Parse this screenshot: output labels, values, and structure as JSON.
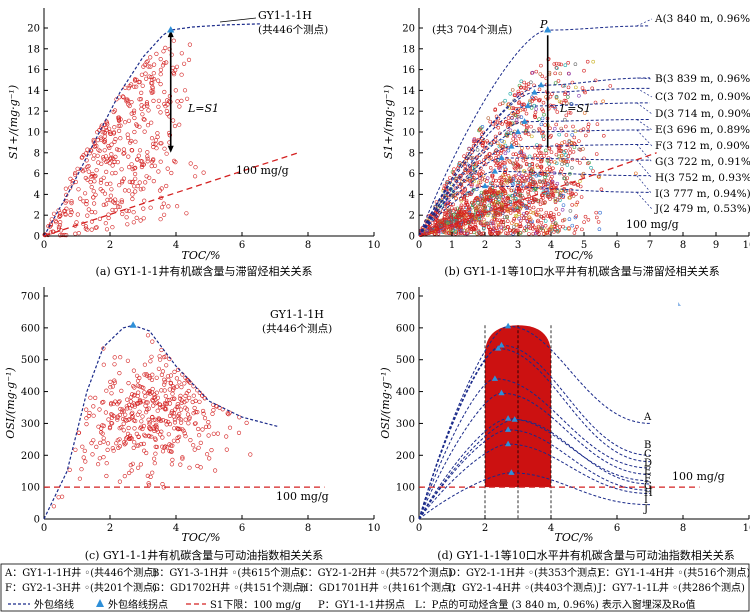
{
  "panels": {
    "a": {
      "ylabel": "S1+/(mg·g⁻¹)",
      "xlabel": "TOC/%",
      "ann_well": "GY1-1-1H",
      "ann_count": "(共446个测点)",
      "lim_label": "100 mg/g",
      "l_label": "L=S1",
      "caption": "(a) GY1-1-1井有机碳含量与滞留烃相关关系"
    },
    "b": {
      "ylabel": "S1+/(mg·g⁻¹)",
      "xlabel": "TOC/%",
      "total": "(共3 704个测点)",
      "p_label": "P",
      "l_label": "L=S1",
      "lim_label": "100 mg/g",
      "curve_labels": [
        "A(3 840 m, 0.96%)",
        "B(3 839 m, 0.96%)",
        "C(3 702 m, 0.90%)",
        "D(3 714 m, 0.90%)",
        "E(3 696 m, 0.89%)",
        "F(3 712 m, 0.90%)",
        "G(3 722 m, 0.91%)",
        "H(3 752 m, 0.93%)",
        "I(3 777 m, 0.94%)",
        "J(2 479 m, 0.53%)"
      ],
      "caption": "(b) GY1-1-1等10口水平井有机碳含量与滞留烃相关关系"
    },
    "c": {
      "ylabel": "OSI/(mg·g⁻¹)",
      "xlabel": "TOC/%",
      "ann_well": "GY1-1-1H",
      "ann_count": "(共446个测点)",
      "lim_label": "100 mg/g",
      "caption": "(c) GY1-1-1井有机碳含量与可动油指数相关关系"
    },
    "d": {
      "ylabel": "OSI/(mg·g⁻¹)",
      "xlabel": "TOC/%",
      "lim_label": "100 mg/g",
      "curve_letters": [
        "A",
        "B",
        "C",
        "D",
        "E",
        "F",
        "G",
        "H",
        "I",
        "J"
      ],
      "caption": "(d) GY1-1-1等10口水平井有机碳含量与可动油指数相关关系"
    }
  },
  "legend": {
    "rows": [
      [
        "A：GY1-1-1H井 ◦(共446个测点)",
        "B：GY1-3-1H井 ◦(共615个测点)",
        "C：GY2-1-2H井 ◦(共572个测点)",
        "D：GY2-1-1H井 ◦(共353个测点)",
        "E：GY1-1-4H井 ◦(共516个测点)"
      ],
      [
        "F：GY2-1-3H井 ◦(共201个测点)",
        "G：GD1702H井 ◦(共151个测点)",
        "H：GD1701H井 ◦(共161个测点)",
        "I：GY2-1-4H井 ◦(共403个测点)",
        "J：GY7-1-1L井 ◦(共286个测点)"
      ]
    ],
    "row3": {
      "envelope": "外包络线",
      "inflection": "外包络线拐点",
      "limit": "S1下限：100 mg/g",
      "note": "P：GY1-1-1井拐点　L：P点的可动烃含量 (3 840 m, 0.96%) 表示入窗埋深及Ro值"
    }
  },
  "colors": {
    "scatter": "#d42020",
    "envelope": "#1a2a8a",
    "limit": "#d42020",
    "marker": "#2e8fd8",
    "fill": "#cc1111"
  },
  "chart_data": [
    {
      "id": "a",
      "type": "scatter",
      "xlabel": "TOC/%",
      "ylabel": "S1+/(mg·g⁻¹)",
      "xlim": [
        0,
        10
      ],
      "ylim": [
        0,
        20
      ],
      "xticks": [
        0,
        2,
        4,
        6,
        8,
        10
      ],
      "yticks": [
        0,
        2,
        4,
        6,
        8,
        10,
        12,
        14,
        16,
        18,
        20
      ],
      "point_count": 446,
      "envelope": [
        [
          0,
          0
        ],
        [
          0.8,
          4.5
        ],
        [
          1.6,
          9.5
        ],
        [
          2.3,
          13.8
        ],
        [
          3.0,
          17.2
        ],
        [
          3.6,
          19.3
        ],
        [
          3.84,
          19.8
        ],
        [
          4.5,
          20.1
        ],
        [
          5.5,
          20.3
        ],
        [
          6.6,
          20.4
        ]
      ],
      "inflection": [
        3.84,
        19.8
      ],
      "limit_line": [
        [
          0,
          0
        ],
        [
          7.7,
          8.0
        ]
      ],
      "L_span": [
        3.84,
        8.0,
        19.8
      ]
    },
    {
      "id": "b",
      "type": "scatter",
      "xlabel": "TOC/%",
      "ylabel": "S1+/(mg·g⁻¹)",
      "xlim": [
        0,
        10
      ],
      "ylim": [
        0,
        20
      ],
      "xticks": [
        0,
        1,
        2,
        3,
        4,
        5,
        6,
        7,
        8,
        9,
        10
      ],
      "yticks": [
        0,
        2,
        4,
        6,
        8,
        10,
        12,
        14,
        16,
        18,
        20
      ],
      "point_count": 3704,
      "inflection": [
        3.9,
        19.8
      ],
      "curves": [
        {
          "name": "A",
          "peak": [
            3.9,
            19.8
          ],
          "end_y": 20.2
        },
        {
          "name": "B",
          "peak": [
            3.7,
            14.5
          ],
          "end_y": 15.2
        },
        {
          "name": "C",
          "peak": [
            3.5,
            13.8
          ],
          "end_y": 14.2
        },
        {
          "name": "D",
          "peak": [
            3.3,
            12.5
          ],
          "end_y": 12.8
        },
        {
          "name": "E",
          "peak": [
            3.2,
            11.0
          ],
          "end_y": 11.2
        },
        {
          "name": "F",
          "peak": [
            3.0,
            10.0
          ],
          "end_y": 10.2
        },
        {
          "name": "G",
          "peak": [
            2.8,
            8.6
          ],
          "end_y": 8.8
        },
        {
          "name": "H",
          "peak": [
            2.5,
            7.5
          ],
          "end_y": 7.3
        },
        {
          "name": "I",
          "peak": [
            2.3,
            6.2
          ],
          "end_y": 5.8
        },
        {
          "name": "J",
          "peak": [
            2.0,
            4.8
          ],
          "end_y": 4.2
        }
      ],
      "limit_line": [
        [
          0,
          0
        ],
        [
          7.2,
          8.0
        ]
      ]
    },
    {
      "id": "c",
      "type": "scatter",
      "xlabel": "TOC/%",
      "ylabel": "OSI/(mg·g⁻¹)",
      "xlim": [
        0,
        10
      ],
      "ylim": [
        0,
        700
      ],
      "xticks": [
        0,
        2,
        4,
        6,
        8,
        10
      ],
      "yticks": [
        0,
        100,
        200,
        300,
        400,
        500,
        600,
        700
      ],
      "point_count": 446,
      "envelope": [
        [
          0,
          0
        ],
        [
          0.7,
          150
        ],
        [
          1.3,
          400
        ],
        [
          1.8,
          540
        ],
        [
          2.4,
          600
        ],
        [
          2.7,
          608
        ],
        [
          3.2,
          590
        ],
        [
          4.0,
          480
        ],
        [
          5.0,
          370
        ],
        [
          6.0,
          320
        ],
        [
          7.1,
          290
        ]
      ],
      "inflection": [
        2.7,
        608
      ],
      "limit_y": 100
    },
    {
      "id": "d",
      "type": "line",
      "xlabel": "TOC/%",
      "ylabel": "OSI/(mg·g⁻¹)",
      "xlim": [
        0,
        10
      ],
      "ylim": [
        0,
        700
      ],
      "xticks": [
        0,
        2,
        4,
        6,
        8,
        10
      ],
      "yticks": [
        0,
        100,
        200,
        300,
        400,
        500,
        600,
        700
      ],
      "shaded_region": {
        "x": [
          2,
          4
        ],
        "y_top": 608
      },
      "guides_x": [
        2,
        3,
        4
      ],
      "limit_y": 100,
      "curves": [
        {
          "name": "A",
          "peak": [
            2.7,
            605
          ],
          "end_y": 300
        },
        {
          "name": "B",
          "peak": [
            2.5,
            545
          ],
          "end_y": 200
        },
        {
          "name": "C",
          "peak": [
            2.4,
            535
          ],
          "end_y": 180
        },
        {
          "name": "D",
          "peak": [
            2.3,
            440
          ],
          "end_y": 160
        },
        {
          "name": "E",
          "peak": [
            2.5,
            395
          ],
          "end_y": 140
        },
        {
          "name": "F",
          "peak": [
            2.7,
            315
          ],
          "end_y": 120
        },
        {
          "name": "G",
          "peak": [
            2.9,
            312
          ],
          "end_y": 110
        },
        {
          "name": "H",
          "peak": [
            2.7,
            280
          ],
          "end_y": 90
        },
        {
          "name": "I",
          "peak": [
            2.7,
            235
          ],
          "end_y": 80
        },
        {
          "name": "J",
          "peak": [
            2.8,
            145
          ],
          "end_y": 45
        }
      ]
    }
  ]
}
